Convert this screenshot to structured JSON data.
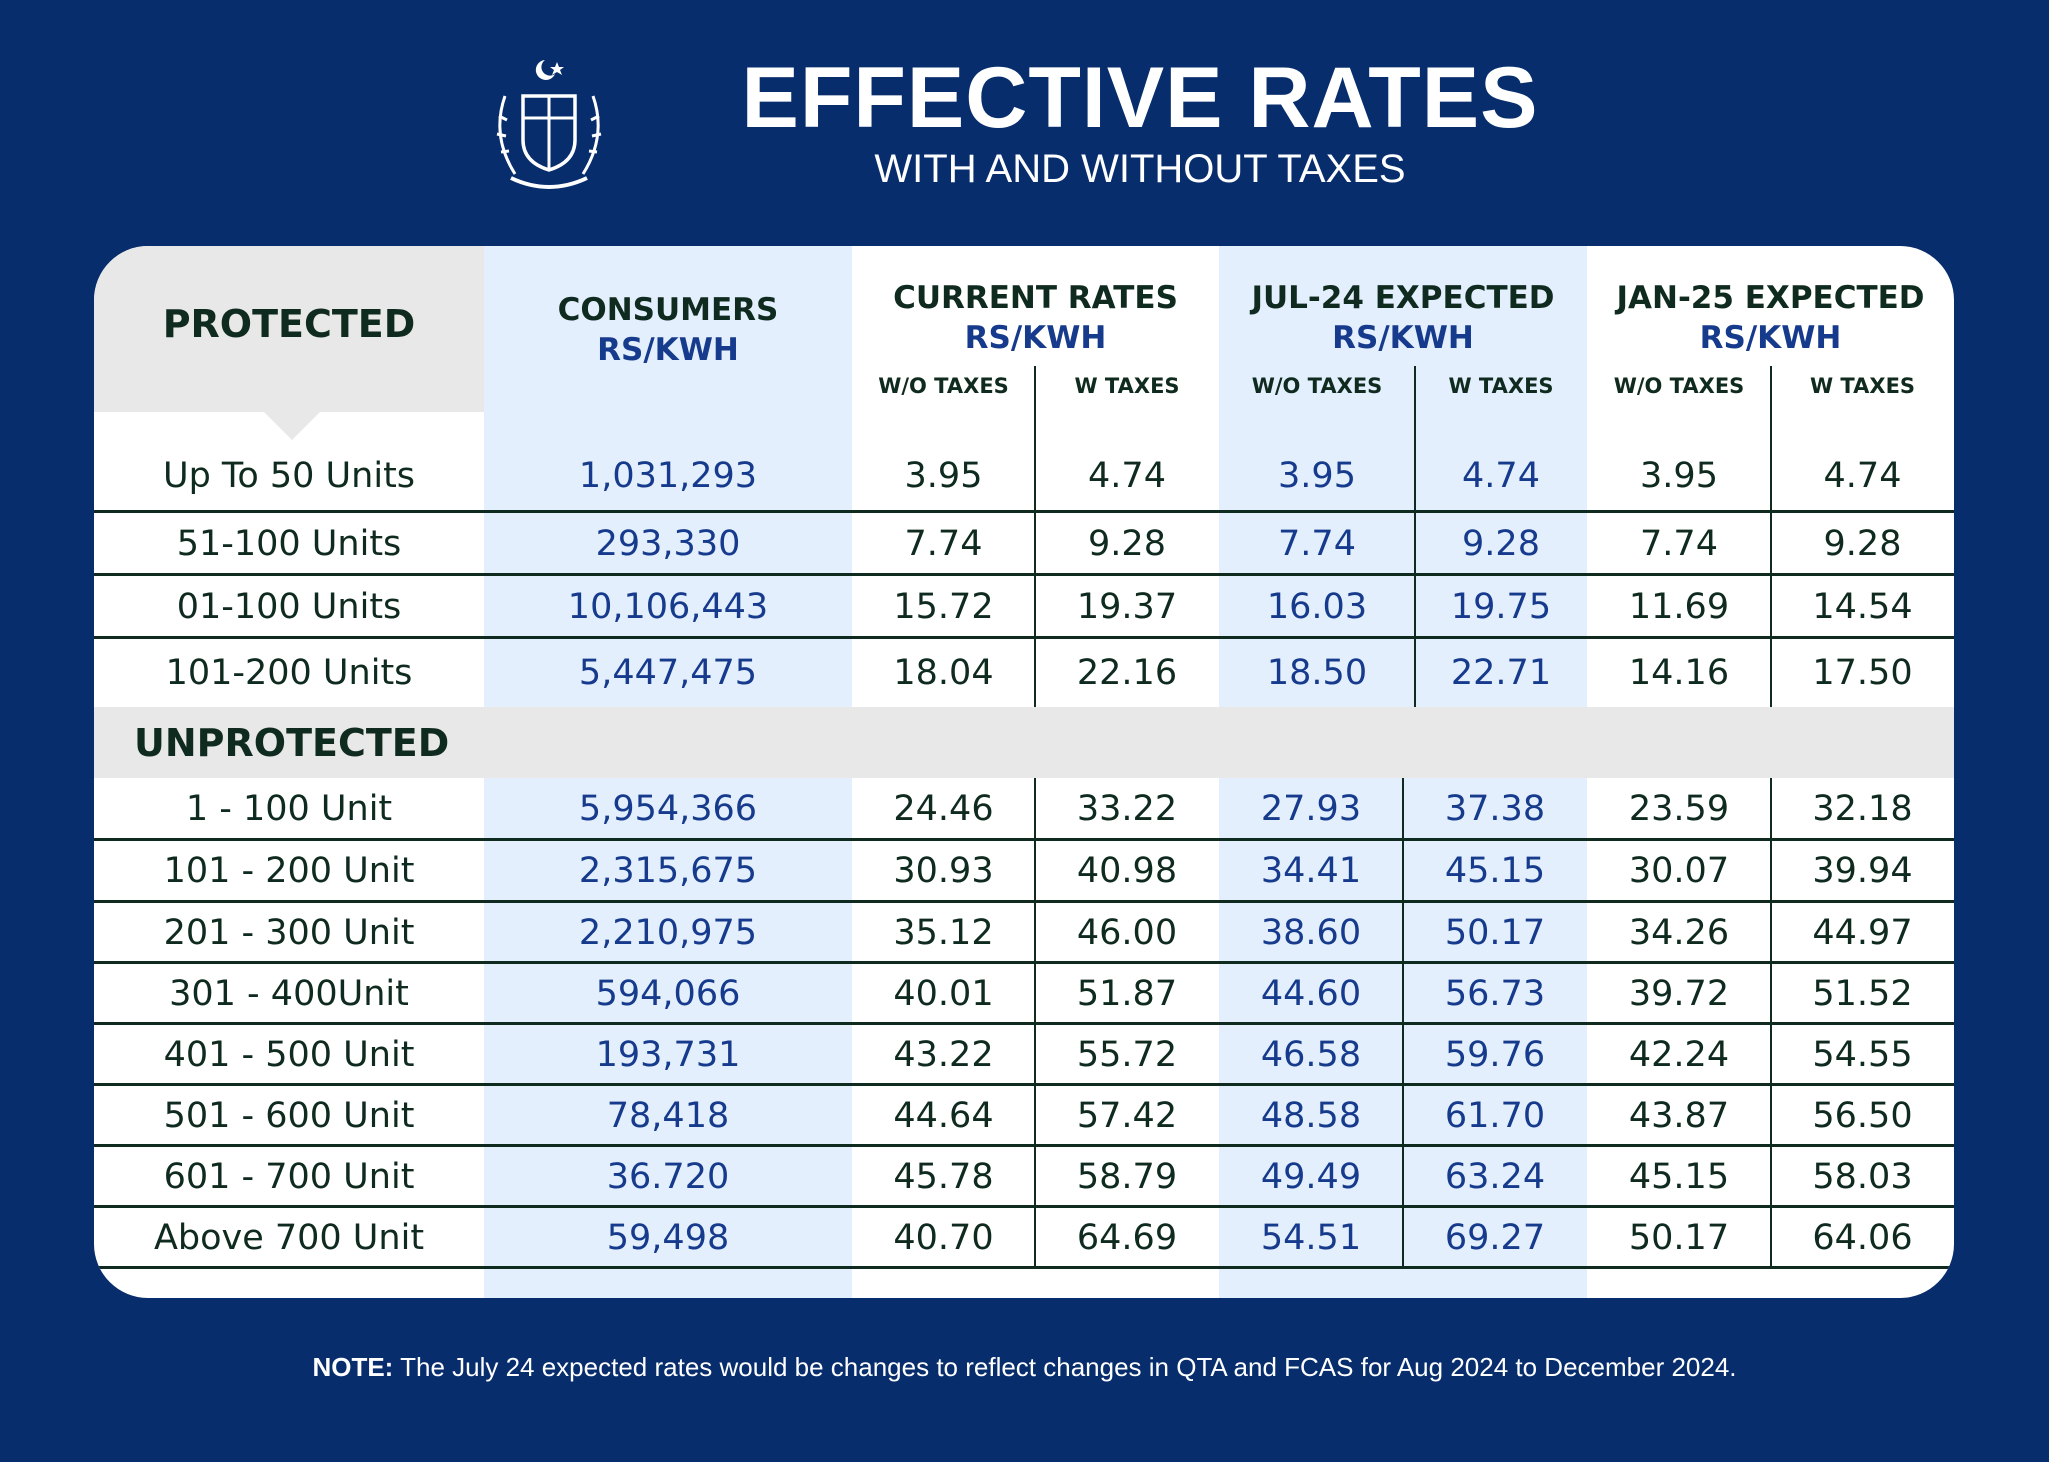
{
  "header": {
    "title": "EFFECTIVE RATES",
    "subtitle": "WITH AND WITHOUT TAXES"
  },
  "colors": {
    "background": "#072d6d",
    "text_dark": "#0f2a1e",
    "text_blue": "#163a8c",
    "band": "#e3effd",
    "grey": "#e8e8e8"
  },
  "table": {
    "protected_label": "PROTECTED",
    "unprotected_label": "UNPROTECTED",
    "columns": [
      {
        "title": "CONSUMERS",
        "unit": "RS/KWH"
      },
      {
        "title": "CURRENT RATES",
        "unit": "RS/KWH"
      },
      {
        "title": "JUL-24 EXPECTED",
        "unit": "RS/KWH"
      },
      {
        "title": "JAN-25 EXPECTED",
        "unit": "RS/KWH"
      }
    ],
    "sub_headers": [
      "W/O TAXES",
      "W TAXES",
      "W/O TAXES",
      "W TAXES",
      "W/O TAXES",
      "W TAXES"
    ],
    "protected_rows": [
      [
        "Up To 50 Units",
        "1,031,293",
        "3.95",
        "4.74",
        "3.95",
        "4.74",
        "3.95",
        "4.74"
      ],
      [
        "51-100 Units",
        "293,330",
        "7.74",
        "9.28",
        "7.74",
        "9.28",
        "7.74",
        "9.28"
      ],
      [
        "01-100 Units",
        "10,106,443",
        "15.72",
        "19.37",
        "16.03",
        "19.75",
        "11.69",
        "14.54"
      ],
      [
        "101-200 Units",
        "5,447,475",
        "18.04",
        "22.16",
        "18.50",
        "22.71",
        "14.16",
        "17.50"
      ]
    ],
    "unprotected_rows": [
      [
        "1 - 100 Unit",
        "5,954,366",
        "24.46",
        "33.22",
        "27.93",
        "37.38",
        "23.59",
        "32.18"
      ],
      [
        "101 - 200 Unit",
        "2,315,675",
        "30.93",
        "40.98",
        "34.41",
        "45.15",
        "30.07",
        "39.94"
      ],
      [
        "201 - 300 Unit",
        "2,210,975",
        "35.12",
        "46.00",
        "38.60",
        "50.17",
        "34.26",
        "44.97"
      ],
      [
        "301 - 400Unit",
        "594,066",
        "40.01",
        "51.87",
        "44.60",
        "56.73",
        "39.72",
        "51.52"
      ],
      [
        "401 - 500 Unit",
        "193,731",
        "43.22",
        "55.72",
        "46.58",
        "59.76",
        "42.24",
        "54.55"
      ],
      [
        "501 - 600 Unit",
        "78,418",
        "44.64",
        "57.42",
        "48.58",
        "61.70",
        "43.87",
        "56.50"
      ],
      [
        "601 - 700 Unit",
        "36.720",
        "45.78",
        "58.79",
        "49.49",
        "63.24",
        "45.15",
        "58.03"
      ],
      [
        "Above 700 Unit",
        "59,498",
        "40.70",
        "64.69",
        "54.51",
        "69.27",
        "50.17",
        "64.06"
      ]
    ]
  },
  "note": {
    "label": "NOTE:",
    "text": " The July 24 expected rates would be changes to reflect changes in QTA and FCAS for Aug 2024 to December 2024."
  }
}
